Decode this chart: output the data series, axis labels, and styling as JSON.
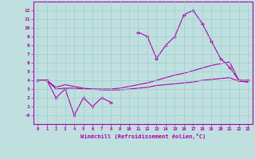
{
  "x": [
    0,
    1,
    2,
    3,
    4,
    5,
    6,
    7,
    8,
    9,
    10,
    11,
    12,
    13,
    14,
    15,
    16,
    17,
    18,
    19,
    20,
    21,
    22,
    23
  ],
  "windchill": [
    4,
    4,
    2,
    3,
    0,
    2,
    1,
    2,
    1.5,
    null,
    null,
    9.5,
    9,
    6.5,
    8,
    9,
    11.5,
    12,
    10.5,
    8.5,
    6.5,
    5.5,
    4,
    4
  ],
  "line_upper": [
    4,
    4,
    3.2,
    3.5,
    3.3,
    3.1,
    3.0,
    3.0,
    3.0,
    3.1,
    3.3,
    3.5,
    3.7,
    4.0,
    4.3,
    4.6,
    4.8,
    5.1,
    5.4,
    5.7,
    5.9,
    6.1,
    4.0,
    3.8
  ],
  "line_lower": [
    4,
    4,
    3.0,
    3.1,
    3.1,
    3.0,
    3.0,
    2.9,
    2.9,
    2.9,
    3.0,
    3.1,
    3.2,
    3.4,
    3.5,
    3.6,
    3.7,
    3.8,
    4.0,
    4.1,
    4.2,
    4.3,
    3.9,
    3.8
  ],
  "bg_color": "#c0e0e0",
  "grid_color": "#a0cccc",
  "line_color": "#aa00aa",
  "xlabel": "Windchill (Refroidissement éolien,°C)",
  "ylim": [
    -1,
    13
  ],
  "xlim": [
    -0.5,
    23.5
  ],
  "yticks": [
    0,
    1,
    2,
    3,
    4,
    5,
    6,
    7,
    8,
    9,
    10,
    11,
    12
  ],
  "xticks": [
    0,
    1,
    2,
    3,
    4,
    5,
    6,
    7,
    8,
    9,
    10,
    11,
    12,
    13,
    14,
    15,
    16,
    17,
    18,
    19,
    20,
    21,
    22,
    23
  ],
  "ytick_labels": [
    "-0",
    "1",
    "2",
    "3",
    "4",
    "5",
    "6",
    "7",
    "8",
    "9",
    "10",
    "11",
    "12"
  ],
  "xtick_labels": [
    "0",
    "1",
    "2",
    "3",
    "4",
    "5",
    "6",
    "7",
    "8",
    "9",
    "10",
    "11",
    "12",
    "13",
    "14",
    "15",
    "16",
    "17",
    "18",
    "19",
    "20",
    "21",
    "22",
    "23"
  ]
}
